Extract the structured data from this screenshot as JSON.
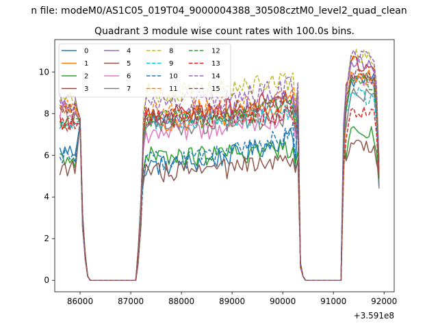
{
  "chart_data": {
    "type": "line",
    "suptitle": "n file: modeM0/AS1C05_019T04_9000004388_30508cztM0_level2_quad_clean",
    "title": "Quadrant 3 module wise count rates with 100.0s bins.",
    "xlabel": "",
    "ylabel": "",
    "x_offset_label": "+3.591e8",
    "x_offset": 359100000,
    "xlim": [
      85500,
      92200
    ],
    "ylim": [
      -0.55,
      11.55
    ],
    "xticks": [
      86000,
      87000,
      88000,
      89000,
      90000,
      91000,
      92000
    ],
    "xtick_labels": [
      "86000",
      "87000",
      "88000",
      "89000",
      "90000",
      "91000",
      "92000"
    ],
    "yticks": [
      0,
      2,
      4,
      6,
      8,
      10
    ],
    "ytick_labels": [
      "0",
      "2",
      "4",
      "6",
      "8",
      "10"
    ],
    "grid": false,
    "legend_position": "top-left",
    "legend_columns": 4,
    "segments": [
      {
        "start": 85600,
        "end": 86200
      },
      {
        "start": 87100,
        "end": 90400
      },
      {
        "start": 91200,
        "end": 91900
      }
    ],
    "plateaus": {
      "0": [
        6.2,
        5.5,
        9.6,
        9.6
      ],
      "1": [
        8.2,
        7.6,
        10.0,
        9.7
      ],
      "2": [
        5.8,
        5.9,
        7.3,
        7.0
      ],
      "3": [
        7.6,
        8.0,
        10.5,
        10.1
      ],
      "4": [
        8.6,
        7.8,
        10.5,
        10.3
      ],
      "5": [
        5.4,
        5.2,
        6.6,
        6.4
      ],
      "6": [
        8.1,
        7.0,
        9.8,
        9.5
      ],
      "7": [
        7.7,
        7.4,
        8.9,
        8.9
      ],
      "8": [
        8.8,
        9.0,
        10.8,
        10.6
      ],
      "9": [
        7.4,
        7.6,
        9.0,
        8.6
      ],
      "10": [
        6.0,
        5.7,
        9.6,
        9.6
      ],
      "11": [
        8.4,
        8.2,
        9.8,
        9.5
      ],
      "12": [
        7.5,
        7.7,
        9.7,
        9.4
      ],
      "13": [
        7.5,
        7.8,
        8.2,
        8.0
      ],
      "14": [
        8.5,
        8.5,
        10.8,
        10.7
      ],
      "15": [
        8.1,
        7.9,
        9.9,
        9.6
      ]
    },
    "series": [
      {
        "name": "0",
        "color": "#1f77b4",
        "dash": "solid"
      },
      {
        "name": "1",
        "color": "#ff7f0e",
        "dash": "solid"
      },
      {
        "name": "2",
        "color": "#2ca02c",
        "dash": "solid"
      },
      {
        "name": "3",
        "color": "#d62728",
        "dash": "solid"
      },
      {
        "name": "4",
        "color": "#9467bd",
        "dash": "solid"
      },
      {
        "name": "5",
        "color": "#8c564b",
        "dash": "solid"
      },
      {
        "name": "6",
        "color": "#e377c2",
        "dash": "solid"
      },
      {
        "name": "7",
        "color": "#7f7f7f",
        "dash": "solid"
      },
      {
        "name": "8",
        "color": "#bcbd22",
        "dash": "dashed"
      },
      {
        "name": "9",
        "color": "#17becf",
        "dash": "dashed"
      },
      {
        "name": "10",
        "color": "#1f77b4",
        "dash": "dashed"
      },
      {
        "name": "11",
        "color": "#ff7f0e",
        "dash": "dashed"
      },
      {
        "name": "12",
        "color": "#2ca02c",
        "dash": "dashed"
      },
      {
        "name": "13",
        "color": "#d62728",
        "dash": "dashed"
      },
      {
        "name": "14",
        "color": "#9467bd",
        "dash": "dashed"
      },
      {
        "name": "15",
        "color": "#8c564b",
        "dash": "dashed"
      }
    ]
  }
}
